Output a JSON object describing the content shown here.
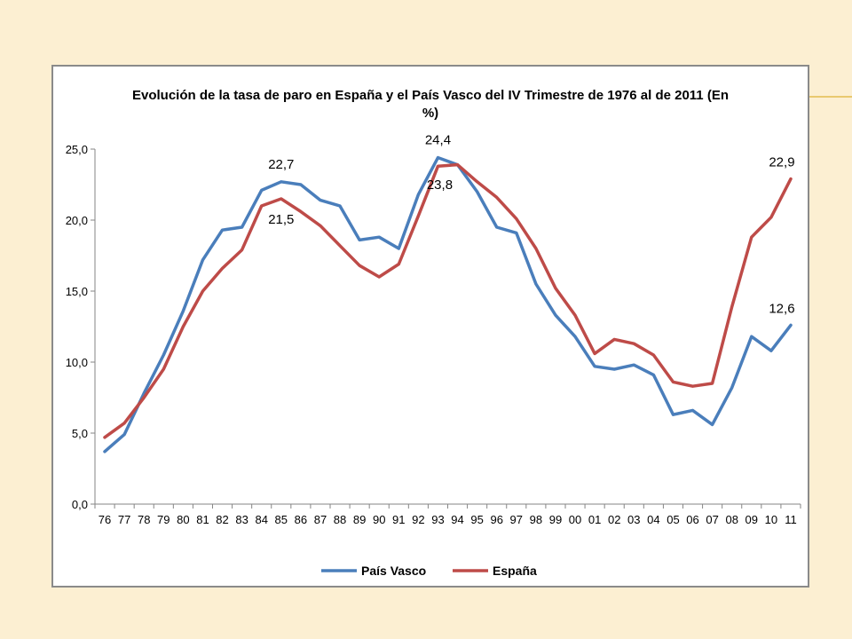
{
  "chart_data": {
    "type": "line",
    "title_line1": "Evolución de la tasa de paro en España y el País Vasco del IV Trimestre de 1976 al de 2011 (En",
    "title_line2": "%)",
    "categories": [
      "76",
      "77",
      "78",
      "79",
      "80",
      "81",
      "82",
      "83",
      "84",
      "85",
      "86",
      "87",
      "88",
      "89",
      "90",
      "91",
      "92",
      "93",
      "94",
      "95",
      "96",
      "97",
      "98",
      "99",
      "00",
      "01",
      "02",
      "03",
      "04",
      "05",
      "06",
      "07",
      "08",
      "09",
      "10",
      "11"
    ],
    "series": [
      {
        "name": "País Vasco",
        "color": "#4a7ebb",
        "values": [
          3.7,
          4.9,
          7.8,
          10.5,
          13.6,
          17.2,
          19.3,
          19.5,
          22.1,
          22.7,
          22.5,
          21.4,
          21.0,
          18.6,
          18.8,
          18.0,
          21.8,
          24.4,
          23.9,
          22.0,
          19.5,
          19.1,
          15.5,
          13.3,
          11.8,
          9.7,
          9.5,
          9.8,
          9.1,
          6.3,
          6.6,
          5.6,
          8.2,
          11.8,
          10.8,
          12.6
        ]
      },
      {
        "name": "España",
        "color": "#be4b48",
        "values": [
          4.7,
          5.7,
          7.5,
          9.5,
          12.5,
          15.0,
          16.6,
          17.9,
          21.0,
          21.5,
          20.6,
          19.6,
          18.2,
          16.8,
          16.0,
          16.9,
          20.3,
          23.8,
          23.9,
          22.7,
          21.6,
          20.1,
          18.0,
          15.2,
          13.3,
          10.6,
          11.6,
          11.3,
          10.5,
          8.6,
          8.3,
          8.5,
          13.9,
          18.8,
          20.2,
          22.9
        ]
      }
    ],
    "ylim": [
      0,
      25
    ],
    "yticks": [
      "0,0",
      "5,0",
      "10,0",
      "15,0",
      "20,0",
      "25,0"
    ],
    "ytick_values": [
      0,
      5,
      10,
      15,
      20,
      25
    ],
    "grid": false,
    "legend_position": "bottom",
    "annotations": [
      {
        "text": "22,7",
        "series": 0,
        "index": 9,
        "pos": "above"
      },
      {
        "text": "21,5",
        "series": 1,
        "index": 9,
        "pos": "below"
      },
      {
        "text": "24,4",
        "series": 0,
        "index": 17,
        "pos": "above"
      },
      {
        "text": "23,8",
        "series": 1,
        "index": 17,
        "pos": "below-right"
      },
      {
        "text": "22,9",
        "series": 1,
        "index": 35,
        "pos": "above-left"
      },
      {
        "text": "12,6",
        "series": 0,
        "index": 35,
        "pos": "above-left"
      }
    ]
  }
}
